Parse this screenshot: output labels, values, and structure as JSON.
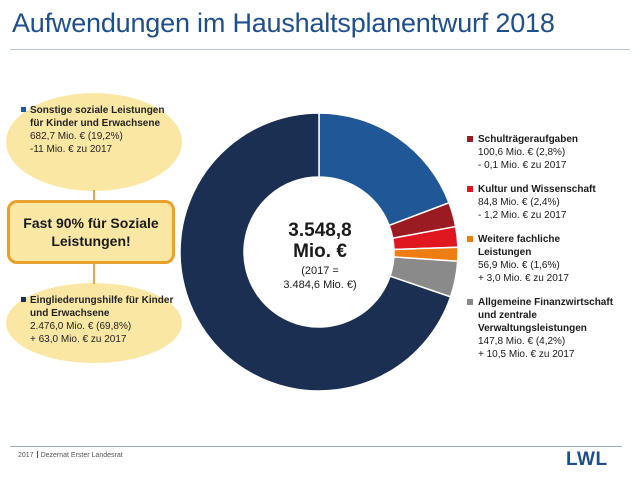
{
  "title": "Aufwendungen im Haushaltsplanentwurf 2018",
  "center": {
    "total": "3.548,8",
    "unit": "Mio. €",
    "prev_line1": "(2017 =",
    "prev_line2": "3.484,6 Mio. €)"
  },
  "highlight": "Fast 90% für Soziale Leistungen!",
  "callouts": {
    "top": {
      "label": "Sonstige soziale Leistungen für Kinder und Erwachsene",
      "line1": "682,7 Mio. €  (19,2%)",
      "line2": "-11 Mio. € zu 2017"
    },
    "bottom": {
      "label": "Eingliederungshilfe für Kinder und Erwachsene",
      "line1": "2.476,0 Mio. € (69,8%)",
      "line2": "+ 63,0 Mio. € zu 2017"
    }
  },
  "legend": [
    {
      "label": "Schulträgeraufgaben",
      "line1": "100,6 Mio. € (2,8%)",
      "line2": "- 0,1 Mio. € zu 2017"
    },
    {
      "label": "Kultur und Wissenschaft",
      "line1": "84,8 Mio. € (2,4%)",
      "line2": "- 1,2 Mio. € zu 2017"
    },
    {
      "label": "Weitere fachliche Leistungen",
      "line1": "56,9 Mio. € (1,6%)",
      "line2": "+ 3,0 Mio. € zu 2017"
    },
    {
      "label": "Allgemeine Finanzwirtschaft und zentrale Verwaltungsleistungen",
      "line1": "147,8 Mio. € (4,2%)",
      "line2": "+ 10,5 Mio. € zu 2017"
    }
  ],
  "footer": {
    "year": "2017",
    "department": "Dezernat Erster Landesrat",
    "logo": "LWL"
  },
  "colors": {
    "title": "#1f4e8c",
    "highlight_border": "#e8a12e",
    "bubble_fill": "#fbe7a4"
  },
  "chart_data": {
    "type": "pie",
    "style": "donut",
    "total": 3548.8,
    "categories": [
      "Sonstige soziale Leistungen für Kinder und Erwachsene",
      "Schulträgeraufgaben",
      "Kultur und Wissenschaft",
      "Weitere fachliche Leistungen",
      "Allgemeine Finanzwirtschaft und zentrale Verwaltungsleistungen",
      "Eingliederungshilfe für Kinder und Erwachsene"
    ],
    "values": [
      682.7,
      100.6,
      84.8,
      56.9,
      147.8,
      2476.0
    ],
    "percentages": [
      19.2,
      2.8,
      2.4,
      1.6,
      4.2,
      69.8
    ],
    "colors": [
      "#1f5797",
      "#9b1b23",
      "#e0171f",
      "#ee7d14",
      "#8a8a8a",
      "#1b2f52"
    ],
    "start_angle_deg": 0,
    "direction": "clockwise"
  }
}
